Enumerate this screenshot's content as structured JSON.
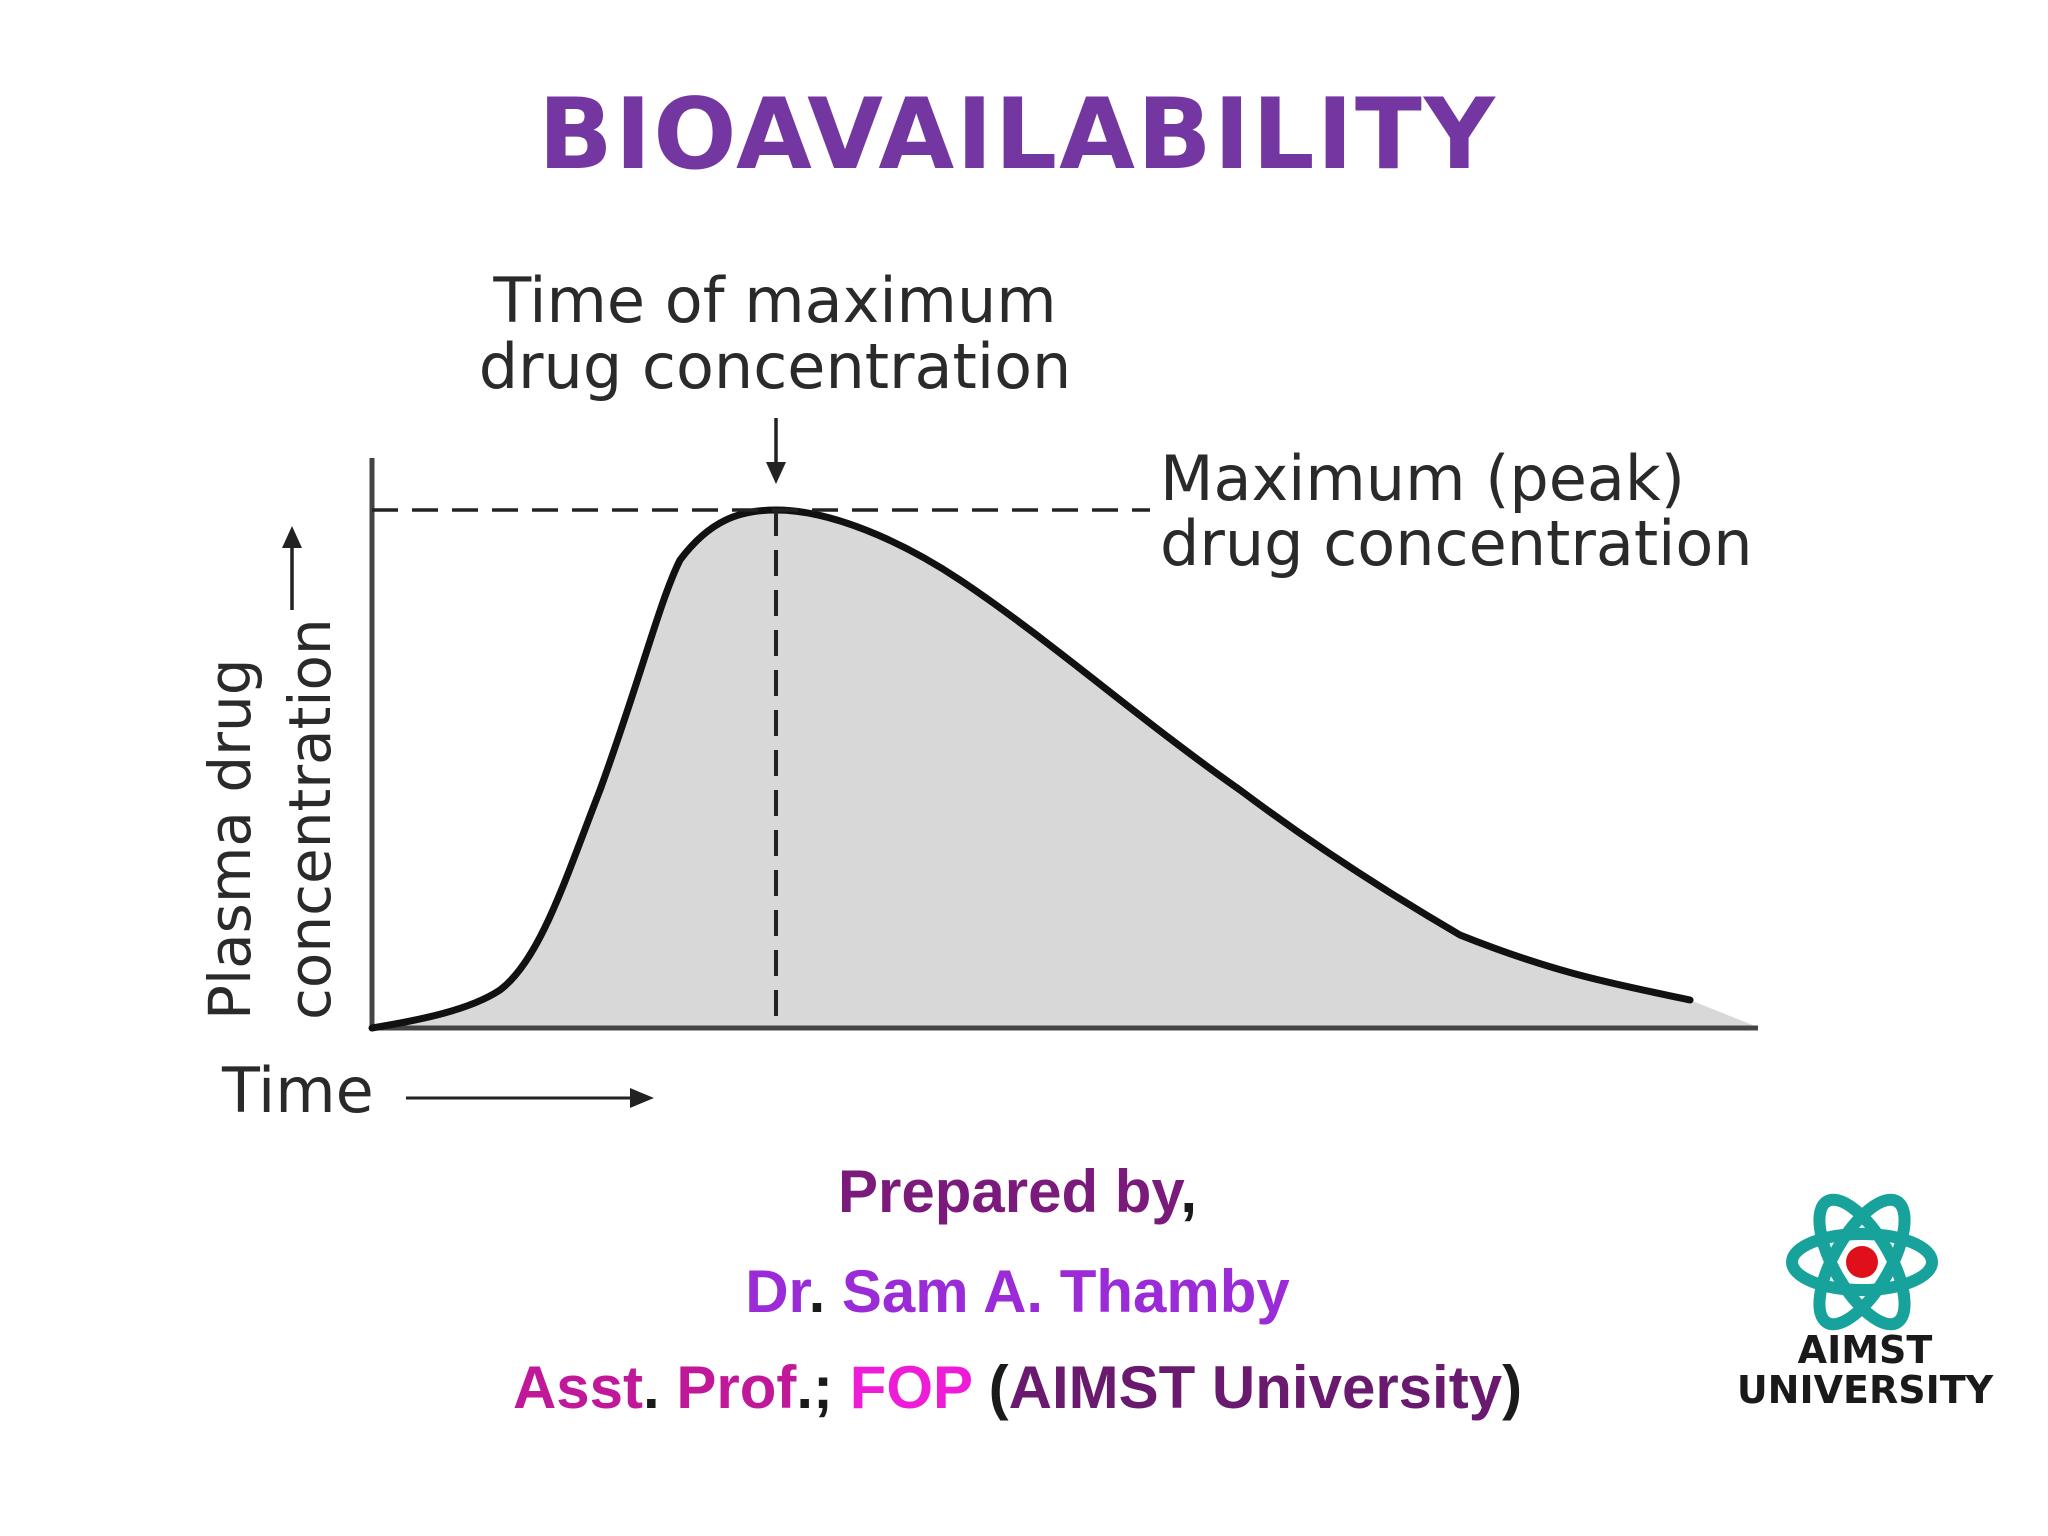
{
  "slide": {
    "title": "BIOAVAILABILITY"
  },
  "diagram": {
    "annotation_tmax_line1": "Time of maximum",
    "annotation_tmax_line2": "drug concentration",
    "annotation_cmax_line1": "Maximum (peak)",
    "annotation_cmax_line2": "drug concentration",
    "y_axis_line1": "Plasma drug",
    "y_axis_line2": "concentration",
    "x_axis_label": "Time",
    "fill_color": "#d8d8d8",
    "curve_color": "#111111"
  },
  "credits": {
    "prepared_by": "Prepared by",
    "prepared_by_punct": ",",
    "name_prefix": "Dr",
    "name_dot": ".",
    "name": "Sam A. Thamby",
    "position": "Asst",
    "position_dot": ".",
    "position_2": "Prof",
    "position_sep": ".;",
    "faculty": "FOP",
    "affiliation_open": "(",
    "affiliation": "AIMST University",
    "affiliation_close": ")",
    "colors": {
      "prepared_by": "#7a1a7a",
      "name": "#9a2bd6",
      "position": "#c1189a",
      "faculty": "#ee1cd6",
      "affiliation": "#6a1a6e",
      "punctuation": "#1a1a1a"
    }
  },
  "logo": {
    "line1": "AIMST",
    "line2": "UNIVERSITY",
    "colors": {
      "orbit": "#17a39c",
      "nucleus": "#e0101a"
    }
  }
}
